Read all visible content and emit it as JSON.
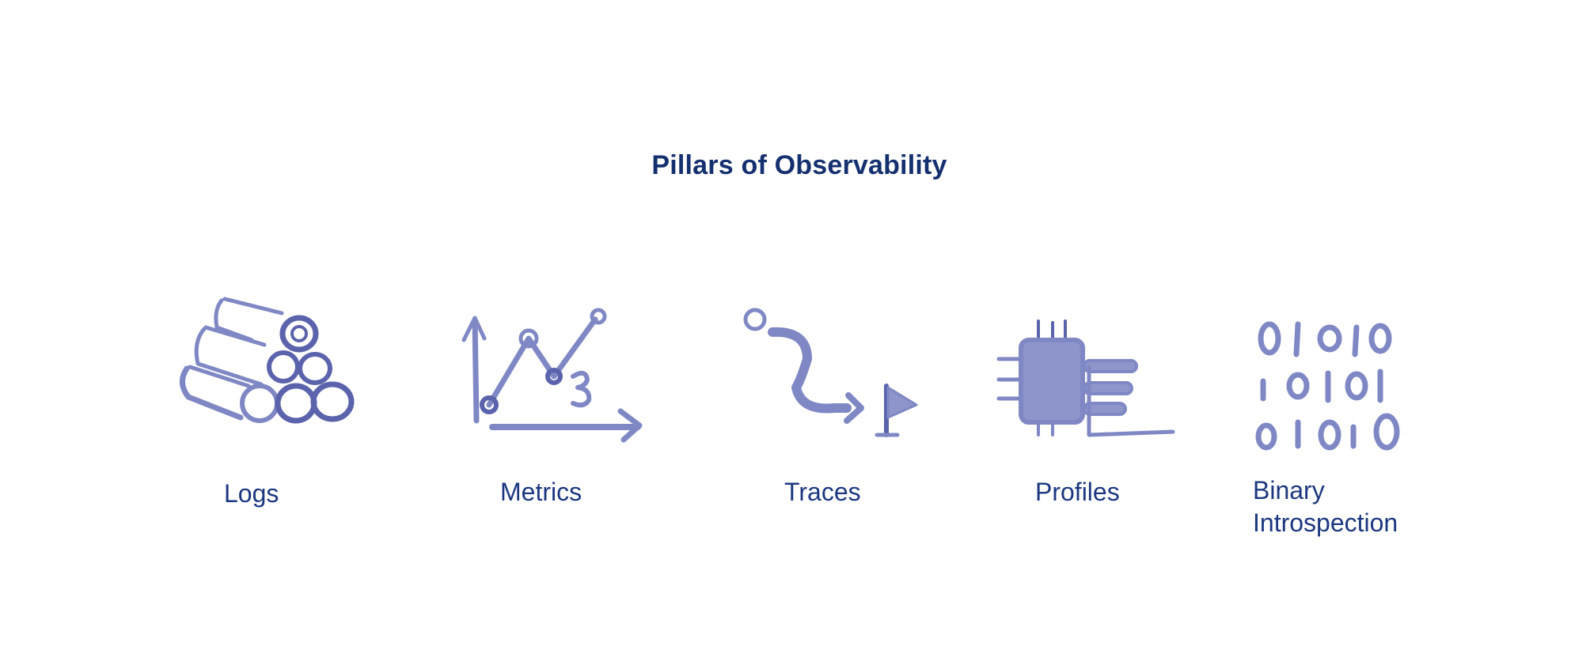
{
  "title": "Pillars of Observability",
  "colors": {
    "title": "#15306f",
    "label": "#1c3780",
    "sketch": "#7f88c4",
    "sketch_dark": "#5a63ab"
  },
  "pillars": [
    {
      "label": "Logs",
      "icon": "log-stack-icon"
    },
    {
      "label": "Metrics",
      "icon": "line-chart-icon"
    },
    {
      "label": "Traces",
      "icon": "trace-path-icon"
    },
    {
      "label": "Profiles",
      "icon": "chip-profile-icon"
    },
    {
      "label_lines": [
        "Binary",
        "Introspection"
      ],
      "icon": "binary-digits-icon"
    }
  ]
}
